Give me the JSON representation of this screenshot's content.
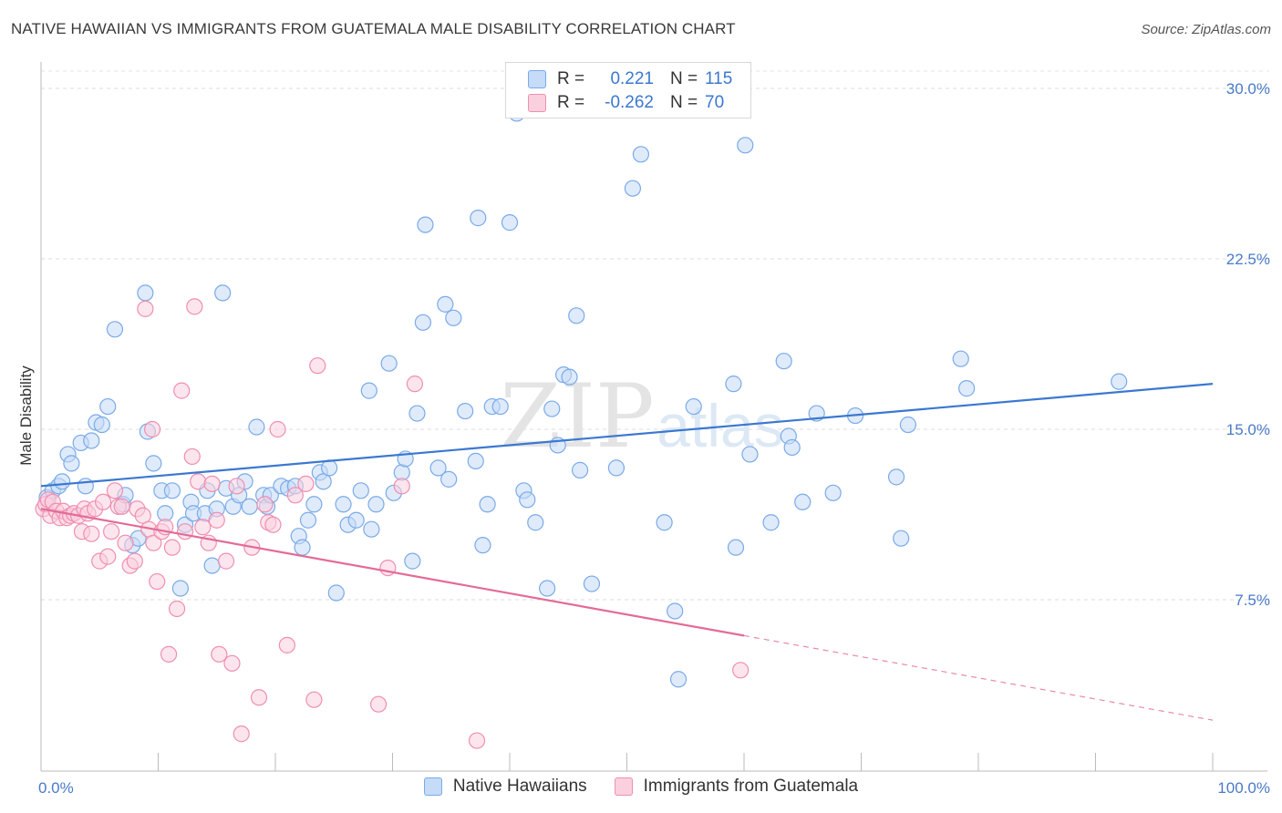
{
  "header": {
    "title": "NATIVE HAWAIIAN VS IMMIGRANTS FROM GUATEMALA MALE DISABILITY CORRELATION CHART",
    "source": "Source: ZipAtlas.com"
  },
  "watermark": {
    "part1": "ZIP",
    "part2": "atlas"
  },
  "legend": {
    "rows": [
      {
        "r_label": "R =",
        "r_value": "0.221",
        "n_label": "N =",
        "n_value": "115",
        "color": "#7aaae8",
        "fill": "#c5dbf7"
      },
      {
        "r_label": "R =",
        "r_value": "-0.262",
        "n_label": "N =",
        "n_value": "70",
        "color": "#ee8fb0",
        "fill": "#fbd0de"
      }
    ]
  },
  "bottom_legend": [
    {
      "label": "Native Hawaiians",
      "color": "#7aaae8",
      "fill": "#c5dbf7"
    },
    {
      "label": "Immigrants from Guatemala",
      "color": "#ee8fb0",
      "fill": "#fbd0de"
    }
  ],
  "chart_data": {
    "type": "scatter",
    "title": "NATIVE HAWAIIAN VS IMMIGRANTS FROM GUATEMALA MALE DISABILITY CORRELATION CHART",
    "xlabel": "",
    "ylabel": "Male Disability",
    "xlim": [
      0,
      100
    ],
    "ylim": [
      0,
      30.5
    ],
    "x_tick_labels": [
      {
        "value": 0,
        "label": "0.0%"
      },
      {
        "value": 100,
        "label": "100.0%"
      }
    ],
    "y_ticks": [
      {
        "value": 7.5,
        "label": "7.5%"
      },
      {
        "value": 15,
        "label": "15.0%"
      },
      {
        "value": 22.5,
        "label": "22.5%"
      },
      {
        "value": 30,
        "label": "30.0%"
      }
    ],
    "x_minor_ticks": [
      10,
      20,
      30,
      40,
      50,
      60,
      70,
      80,
      90
    ],
    "grid": "horizontal-dashed",
    "legend_position": "top-center",
    "series": [
      {
        "name": "Native Hawaiians",
        "color": "#3b78d0",
        "marker_fill": "#c5dbf7",
        "marker_stroke": "#7aaae8",
        "trend": {
          "x": [
            0,
            100
          ],
          "y": [
            12.5,
            17.0
          ],
          "dashed_from": null
        },
        "points": [
          [
            0.5,
            12.0
          ],
          [
            1.0,
            12.3
          ],
          [
            1.5,
            12.5
          ],
          [
            1.8,
            12.7
          ],
          [
            2.3,
            13.9
          ],
          [
            2.6,
            13.5
          ],
          [
            3.4,
            14.4
          ],
          [
            3.8,
            12.5
          ],
          [
            4.3,
            14.5
          ],
          [
            4.7,
            15.3
          ],
          [
            5.2,
            15.2
          ],
          [
            5.7,
            16.0
          ],
          [
            6.3,
            19.4
          ],
          [
            7.0,
            11.7
          ],
          [
            7.2,
            12.1
          ],
          [
            7.8,
            9.9
          ],
          [
            8.3,
            10.2
          ],
          [
            8.9,
            21.0
          ],
          [
            9.1,
            14.9
          ],
          [
            9.6,
            13.5
          ],
          [
            10.3,
            12.3
          ],
          [
            10.6,
            11.3
          ],
          [
            11.2,
            12.3
          ],
          [
            11.9,
            8.0
          ],
          [
            12.3,
            10.8
          ],
          [
            12.8,
            11.8
          ],
          [
            13.0,
            11.3
          ],
          [
            14.0,
            11.3
          ],
          [
            14.2,
            12.3
          ],
          [
            14.6,
            9.0
          ],
          [
            15.0,
            11.5
          ],
          [
            15.5,
            21.0
          ],
          [
            15.8,
            12.4
          ],
          [
            16.4,
            11.6
          ],
          [
            16.9,
            12.1
          ],
          [
            17.4,
            12.7
          ],
          [
            17.8,
            11.6
          ],
          [
            18.4,
            15.1
          ],
          [
            19.0,
            12.1
          ],
          [
            19.3,
            11.6
          ],
          [
            19.6,
            12.1
          ],
          [
            20.5,
            12.5
          ],
          [
            21.1,
            12.4
          ],
          [
            21.7,
            12.5
          ],
          [
            22.0,
            10.3
          ],
          [
            22.3,
            9.8
          ],
          [
            22.8,
            11.0
          ],
          [
            23.3,
            11.7
          ],
          [
            23.8,
            13.1
          ],
          [
            24.1,
            12.7
          ],
          [
            24.6,
            13.3
          ],
          [
            25.2,
            7.8
          ],
          [
            25.8,
            11.7
          ],
          [
            26.2,
            10.8
          ],
          [
            26.9,
            11.0
          ],
          [
            27.3,
            12.3
          ],
          [
            28.2,
            10.6
          ],
          [
            28.0,
            16.7
          ],
          [
            28.6,
            11.7
          ],
          [
            29.7,
            17.9
          ],
          [
            30.1,
            12.2
          ],
          [
            30.8,
            13.1
          ],
          [
            31.1,
            13.7
          ],
          [
            31.7,
            9.2
          ],
          [
            32.1,
            15.7
          ],
          [
            32.6,
            19.7
          ],
          [
            32.8,
            24.0
          ],
          [
            33.9,
            13.3
          ],
          [
            34.5,
            20.5
          ],
          [
            34.8,
            12.8
          ],
          [
            35.2,
            19.9
          ],
          [
            36.2,
            15.8
          ],
          [
            37.1,
            13.6
          ],
          [
            37.3,
            24.3
          ],
          [
            37.7,
            9.9
          ],
          [
            38.1,
            11.7
          ],
          [
            38.5,
            16.0
          ],
          [
            39.2,
            16.0
          ],
          [
            40.0,
            24.1
          ],
          [
            40.6,
            28.9
          ],
          [
            41.2,
            12.3
          ],
          [
            41.5,
            11.9
          ],
          [
            42.2,
            10.9
          ],
          [
            43.2,
            8.0
          ],
          [
            43.6,
            15.9
          ],
          [
            44.1,
            14.3
          ],
          [
            44.6,
            17.4
          ],
          [
            45.1,
            17.3
          ],
          [
            45.7,
            20.0
          ],
          [
            46.0,
            13.2
          ],
          [
            47.0,
            8.2
          ],
          [
            49.1,
            13.3
          ],
          [
            50.5,
            25.6
          ],
          [
            51.2,
            27.1
          ],
          [
            53.2,
            10.9
          ],
          [
            54.1,
            7.0
          ],
          [
            54.4,
            4.0
          ],
          [
            55.7,
            16.0
          ],
          [
            59.1,
            17.0
          ],
          [
            59.3,
            9.8
          ],
          [
            60.1,
            27.5
          ],
          [
            60.5,
            13.9
          ],
          [
            62.3,
            10.9
          ],
          [
            63.4,
            18.0
          ],
          [
            63.8,
            14.7
          ],
          [
            64.1,
            14.2
          ],
          [
            65.0,
            11.8
          ],
          [
            66.2,
            15.7
          ],
          [
            67.6,
            12.2
          ],
          [
            69.5,
            15.6
          ],
          [
            73.0,
            12.9
          ],
          [
            73.4,
            10.2
          ],
          [
            74.0,
            15.2
          ],
          [
            78.5,
            18.1
          ],
          [
            79.0,
            16.8
          ],
          [
            92.0,
            17.1
          ]
        ]
      },
      {
        "name": "Immigrants from Guatemala",
        "color": "#e36b97",
        "marker_fill": "#fbd0de",
        "marker_stroke": "#ee8fb0",
        "trend": {
          "x": [
            0,
            100
          ],
          "y": [
            11.5,
            2.2
          ],
          "dashed_from": 60
        },
        "points": [
          [
            0.2,
            11.5
          ],
          [
            0.4,
            11.7
          ],
          [
            0.6,
            11.9
          ],
          [
            0.8,
            11.2
          ],
          [
            1.0,
            11.8
          ],
          [
            1.3,
            11.4
          ],
          [
            1.6,
            11.1
          ],
          [
            1.9,
            11.4
          ],
          [
            2.2,
            11.1
          ],
          [
            2.5,
            11.2
          ],
          [
            2.8,
            11.3
          ],
          [
            3.2,
            11.2
          ],
          [
            3.5,
            10.5
          ],
          [
            3.7,
            11.5
          ],
          [
            4.0,
            11.3
          ],
          [
            4.3,
            10.4
          ],
          [
            4.6,
            11.5
          ],
          [
            5.0,
            9.2
          ],
          [
            5.3,
            11.8
          ],
          [
            5.7,
            9.4
          ],
          [
            6.0,
            10.5
          ],
          [
            6.3,
            12.3
          ],
          [
            6.6,
            11.6
          ],
          [
            6.9,
            11.6
          ],
          [
            7.2,
            10.0
          ],
          [
            7.6,
            9.0
          ],
          [
            8.0,
            9.2
          ],
          [
            8.2,
            11.5
          ],
          [
            8.7,
            11.2
          ],
          [
            8.9,
            20.3
          ],
          [
            9.2,
            10.6
          ],
          [
            9.6,
            10.0
          ],
          [
            9.9,
            8.3
          ],
          [
            10.3,
            10.5
          ],
          [
            10.6,
            10.7
          ],
          [
            10.9,
            5.1
          ],
          [
            11.2,
            9.8
          ],
          [
            11.6,
            7.1
          ],
          [
            12.0,
            16.7
          ],
          [
            12.3,
            10.5
          ],
          [
            12.9,
            13.8
          ],
          [
            13.1,
            20.4
          ],
          [
            13.4,
            12.7
          ],
          [
            13.8,
            10.7
          ],
          [
            14.3,
            10.0
          ],
          [
            14.6,
            12.6
          ],
          [
            15.0,
            11.0
          ],
          [
            15.2,
            5.1
          ],
          [
            15.8,
            9.2
          ],
          [
            16.3,
            4.7
          ],
          [
            16.7,
            12.5
          ],
          [
            17.1,
            1.6
          ],
          [
            18.0,
            9.8
          ],
          [
            18.6,
            3.2
          ],
          [
            19.1,
            11.7
          ],
          [
            19.4,
            10.9
          ],
          [
            19.8,
            10.8
          ],
          [
            20.2,
            15.0
          ],
          [
            21.0,
            5.5
          ],
          [
            21.7,
            12.1
          ],
          [
            22.6,
            12.6
          ],
          [
            23.3,
            3.1
          ],
          [
            23.6,
            17.8
          ],
          [
            28.8,
            2.9
          ],
          [
            29.6,
            8.9
          ],
          [
            30.8,
            12.5
          ],
          [
            31.9,
            17.0
          ],
          [
            37.2,
            1.3
          ],
          [
            59.7,
            4.4
          ],
          [
            9.5,
            15.0
          ]
        ]
      }
    ]
  }
}
